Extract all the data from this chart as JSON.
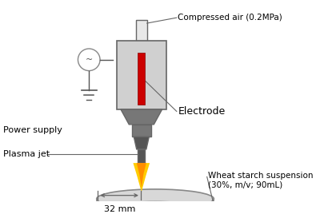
{
  "title": "",
  "background_color": "#ffffff",
  "labels": {
    "compressed_air": "Compressed air (0.2MPa)",
    "electrode": "Electrode",
    "power_supply": "Power supply",
    "plasma_jet": "Plasma jet",
    "distance": "32 mm",
    "wheat_starch": "Wheat starch suspension\n(30%, m/v; 90mL)"
  },
  "colors": {
    "device_body": "#d0d0d0",
    "device_outline": "#666666",
    "electrode_red": "#cc0000",
    "nozzle": "#777777",
    "nozzle_dark": "#555555",
    "plasma_yellow": "#ffcc00",
    "plasma_orange": "#ff8800",
    "dish": "#d8d8d8",
    "dish_outline": "#888888",
    "wire": "#555555",
    "ac_circle": "#888888",
    "connector_tube": "#e8e8e8",
    "label_line": "#666666"
  },
  "figsize": [
    4.0,
    2.78
  ],
  "dpi": 100
}
